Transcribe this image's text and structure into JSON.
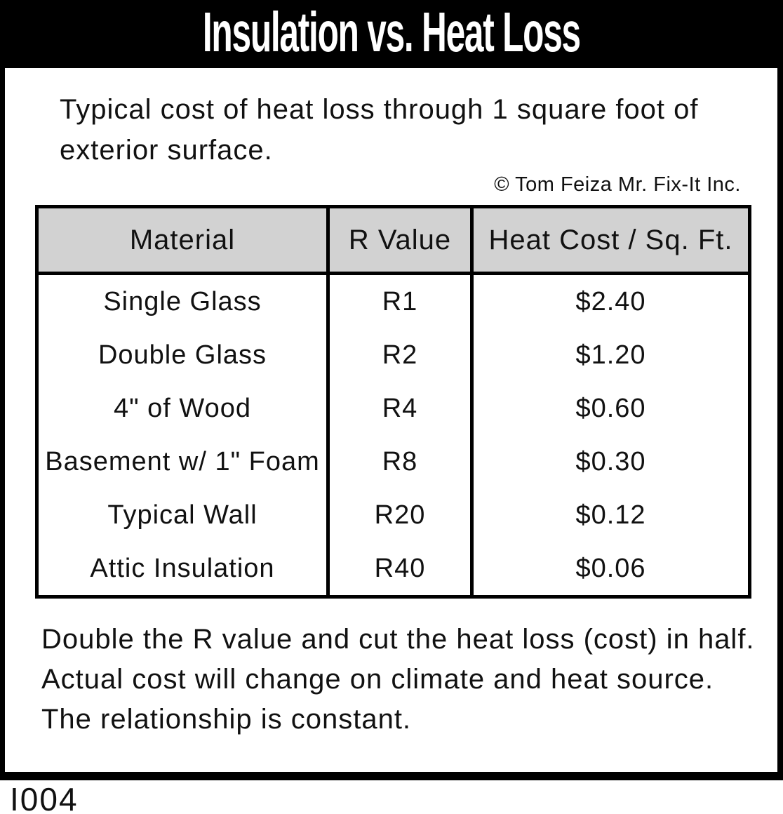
{
  "header": {
    "title": "Insulation vs. Heat Loss"
  },
  "intro": {
    "text": "Typical cost of heat loss through 1 square foot of exterior surface."
  },
  "credit": {
    "text": "© Tom Feiza Mr. Fix-It Inc."
  },
  "chart_data": {
    "type": "table",
    "title": "Insulation vs. Heat Loss",
    "columns": [
      "Material",
      "R Value",
      "Heat Cost / Sq. Ft."
    ],
    "rows": [
      [
        "Single Glass",
        "R1",
        "$2.40"
      ],
      [
        "Double Glass",
        "R2",
        "$1.20"
      ],
      [
        "4\" of Wood",
        "R4",
        "$0.60"
      ],
      [
        "Basement w/ 1\" Foam",
        "R8",
        "$0.30"
      ],
      [
        "Typical Wall",
        "R20",
        "$0.12"
      ],
      [
        "Attic Insulation",
        "R40",
        "$0.06"
      ]
    ],
    "r_values": [
      1,
      2,
      4,
      8,
      20,
      40
    ],
    "heat_cost_per_sqft_usd": [
      2.4,
      1.2,
      0.6,
      0.3,
      0.12,
      0.06
    ],
    "layout": "header row gray, no horizontal rules between body rows, heavy black grid borders"
  },
  "footnote": {
    "text": "Double the R value and cut the heat loss (cost) in half.  Actual cost will change on climate and heat source.  The relationship is constant."
  },
  "figure": {
    "id": "I004"
  },
  "colors": {
    "banner_bg": "#000000",
    "banner_text": "#ffffff",
    "table_header_bg": "#d2d2d2",
    "border": "#000000",
    "text": "#111111"
  }
}
